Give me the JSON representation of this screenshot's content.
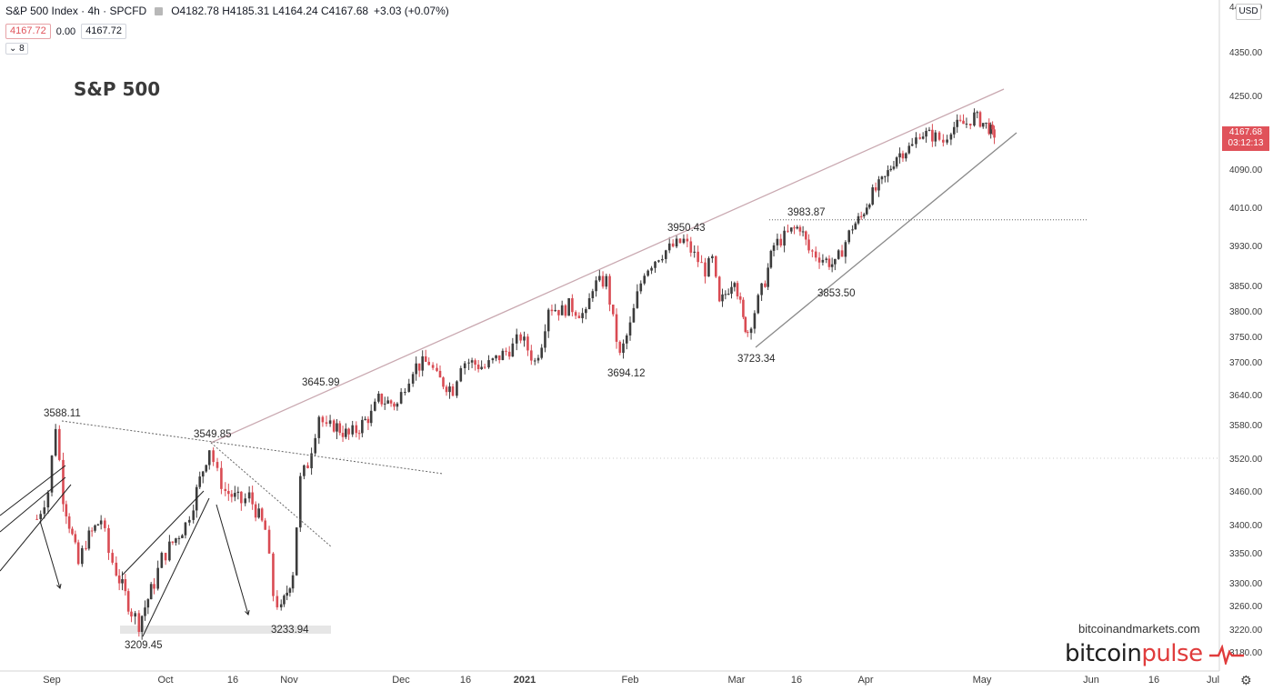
{
  "header": {
    "symbol": "S&P 500 Index · 4h · SPCFD",
    "ohlc": "O4182.78 H4185.31 L4164.24 C4167.68",
    "change": "+3.03 (+0.07%)",
    "bid": "4167.72",
    "spread": "0.00",
    "ask": "4167.72",
    "indicator_count": "8"
  },
  "title_overlay": "S&P 500",
  "currency": "USD",
  "price_tag": {
    "price": "4167.68",
    "countdown": "03:12:13",
    "color": "#e0525a"
  },
  "watermark": "bitcoinandmarkets.com",
  "brand": {
    "part1": "bitcoin",
    "part2": "pulse"
  },
  "colors": {
    "up": "#3c3c3c",
    "down": "#d94b53",
    "resistance_line": "#c9a8b0"
  },
  "chart_data": {
    "type": "candlestick",
    "price_scale": {
      "labels": [
        3180,
        3220,
        3260,
        3300,
        3350,
        3400,
        3460,
        3520,
        3580,
        3640,
        3700,
        3750,
        3800,
        3850,
        3930,
        4010,
        4090,
        4250,
        4350
      ]
    },
    "x_axis": {
      "labels": [
        "Sep",
        "Oct",
        "16",
        "Nov",
        "Dec",
        "16",
        "2021",
        "Feb",
        "Mar",
        "16",
        "Apr",
        "May",
        "Jun",
        "16",
        "Jul"
      ]
    },
    "annotations": [
      "3588.11",
      "3549.85",
      "3645.99",
      "3209.45",
      "3233.94",
      "3694.12",
      "3950.43",
      "3723.34",
      "3983.87",
      "3853.50"
    ],
    "candles_approx": [
      [
        "Aug 28",
        3410
      ],
      [
        "Aug 31",
        3460
      ],
      [
        "Sep 2",
        3580
      ],
      [
        "Sep 4",
        3450
      ],
      [
        "Sep 8",
        3330
      ],
      [
        "Sep 10",
        3370
      ],
      [
        "Sep 14",
        3410
      ],
      [
        "Sep 16",
        3350
      ],
      [
        "Sep 18",
        3320
      ],
      [
        "Sep 22",
        3250
      ],
      [
        "Sep 24",
        3230
      ],
      [
        "Sep 28",
        3300
      ],
      [
        "Sep 30",
        3340
      ],
      [
        "Oct 2",
        3360
      ],
      [
        "Oct 6",
        3400
      ],
      [
        "Oct 8",
        3440
      ],
      [
        "Oct 12",
        3540
      ],
      [
        "Oct 14",
        3490
      ],
      [
        "Oct 16",
        3460
      ],
      [
        "Oct 20",
        3440
      ],
      [
        "Oct 22",
        3450
      ],
      [
        "Oct 26",
        3390
      ],
      [
        "Oct 28",
        3280
      ],
      [
        "Oct 30",
        3250
      ],
      [
        "Nov 2",
        3320
      ],
      [
        "Nov 4",
        3480
      ],
      [
        "Nov 6",
        3510
      ],
      [
        "Nov 9",
        3600
      ],
      [
        "Nov 11",
        3570
      ],
      [
        "Nov 13",
        3580
      ],
      [
        "Nov 17",
        3560
      ],
      [
        "Nov 19",
        3570
      ],
      [
        "Nov 23",
        3600
      ],
      [
        "Nov 25",
        3630
      ],
      [
        "Nov 30",
        3620
      ],
      [
        "Dec 2",
        3660
      ],
      [
        "Dec 4",
        3690
      ],
      [
        "Dec 8",
        3700
      ],
      [
        "Dec 10",
        3670
      ],
      [
        "Dec 14",
        3650
      ],
      [
        "Dec 16",
        3700
      ],
      [
        "Dec 18",
        3700
      ],
      [
        "Dec 22",
        3690
      ],
      [
        "Dec 24",
        3700
      ],
      [
        "Dec 29",
        3730
      ],
      [
        "Dec 31",
        3750
      ],
      [
        "Jan 4",
        3700
      ],
      [
        "Jan 6",
        3740
      ],
      [
        "Jan 8",
        3810
      ],
      [
        "Jan 12",
        3800
      ],
      [
        "Jan 14",
        3810
      ],
      [
        "Jan 19",
        3790
      ],
      [
        "Jan 21",
        3850
      ],
      [
        "Jan 25",
        3860
      ],
      [
        "Jan 27",
        3780
      ],
      [
        "Jan 29",
        3710
      ],
      [
        "Feb 1",
        3770
      ],
      [
        "Feb 3",
        3830
      ],
      [
        "Feb 5",
        3880
      ],
      [
        "Feb 9",
        3910
      ],
      [
        "Feb 11",
        3920
      ],
      [
        "Feb 16",
        3940
      ],
      [
        "Feb 18",
        3920
      ],
      [
        "Feb 22",
        3880
      ],
      [
        "Feb 24",
        3900
      ],
      [
        "Feb 26",
        3810
      ],
      [
        "Mar 2",
        3870
      ],
      [
        "Mar 4",
        3780
      ],
      [
        "Mar 5",
        3760
      ],
      [
        "Mar 9",
        3860
      ],
      [
        "Mar 11",
        3930
      ],
      [
        "Mar 15",
        3960
      ],
      [
        "Mar 17",
        3970
      ],
      [
        "Mar 19",
        3920
      ],
      [
        "Mar 23",
        3900
      ],
      [
        "Mar 25",
        3890
      ],
      [
        "Mar 29",
        3970
      ],
      [
        "Mar 31",
        3990
      ],
      [
        "Apr 2",
        4030
      ],
      [
        "Apr 6",
        4070
      ],
      [
        "Apr 9",
        4120
      ],
      [
        "Apr 13",
        4140
      ],
      [
        "Apr 15",
        4170
      ],
      [
        "Apr 19",
        4160
      ],
      [
        "Apr 21",
        4150
      ],
      [
        "Apr 23",
        4180
      ],
      [
        "Apr 27",
        4190
      ],
      [
        "Apr 29",
        4205
      ],
      [
        "May 3",
        4180
      ],
      [
        "May 4",
        4164
      ],
      [
        "May 5",
        4167.68
      ]
    ],
    "lines": [
      {
        "kind": "upper-trendline-resistance",
        "from": [
          "Oct 12",
          3550
        ],
        "to": [
          "May 5",
          4250
        ]
      },
      {
        "kind": "lower-trendline-support",
        "from": [
          "Mar 5",
          3723
        ],
        "to": [
          "May 8",
          4135
        ]
      },
      {
        "kind": "horizontal-dotted",
        "price": 3983.87,
        "from": "Mar 9",
        "to": "May 20"
      },
      {
        "kind": "horizontal-dotted-faint",
        "price": 3520
      }
    ]
  }
}
